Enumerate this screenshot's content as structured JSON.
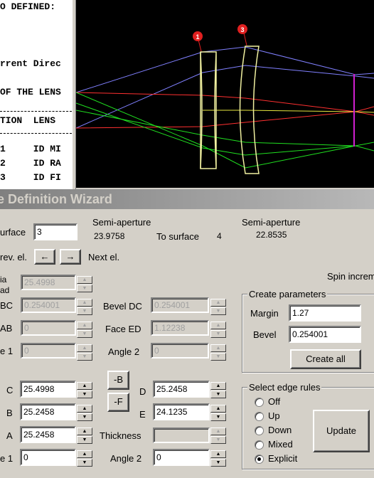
{
  "console": {
    "lines": [
      "O DEFINED:",
      "rrent Direc",
      "OF THE LENS",
      "TION  LENS",
      "1     ID MI",
      "2     ID RA",
      "3     ID FI"
    ]
  },
  "viewer": {
    "surface_markers": [
      "1",
      "3"
    ],
    "colors": {
      "blue": "#8080ff",
      "red": "#ff3030",
      "green": "#20e020",
      "yellow": "#e8e840",
      "lens": "#f0f0a0",
      "image": "#d020d0",
      "marker": "#e02020"
    }
  },
  "window": {
    "title": "e Definition Wizard"
  },
  "header": {
    "from_surface_label": "urface",
    "from_surface_value": "3",
    "semi_aperture_label_1": "Semi-aperture",
    "semi_aperture_value_1": "23.9758",
    "to_surface_label": "To surface",
    "to_surface_value": "4",
    "semi_aperture_label_2": "Semi-aperture",
    "semi_aperture_value_2": "22.8535"
  },
  "nav": {
    "prev_label": "rev. el.",
    "prev_arrow": "←",
    "next_arrow": "→",
    "next_label": "Next el."
  },
  "spin_increment_label": "Spin increm",
  "left_disabled": {
    "row1_label_a": "ia",
    "row1_label_b": "ad",
    "row1_value": "25.4998",
    "row2_label": "BC",
    "row2_value": "0.254001",
    "row3_label": "AB",
    "row3_value": "0",
    "row4_label": "e 1",
    "row4_value": "0"
  },
  "mid_disabled": {
    "bevel_dc_label": "Bevel DC",
    "bevel_dc_value": "0.254001",
    "face_ed_label": "Face ED",
    "face_ed_value": "1.12238",
    "angle2_label": "Angle 2",
    "angle2_value": "0"
  },
  "create_params": {
    "title": "Create parameters",
    "margin_label": "Margin",
    "margin_value": "1.27",
    "bevel_label": "Bevel",
    "bevel_value": "0.254001",
    "create_all_label": "Create all"
  },
  "edges": {
    "c_label": "C",
    "c_value": "25.4998",
    "b_label": "B",
    "b_value": "25.2458",
    "a_label": "A",
    "a_value": "25.2458",
    "angle1_label": "e 1",
    "angle1_value": "0",
    "minus_b_label": "-B",
    "minus_f_label": "-F",
    "d_label": "D",
    "d_value": "25.2458",
    "e_label": "E",
    "e_value": "24.1235",
    "thickness_label": "Thickness",
    "thickness_value": "",
    "angle2_label": "Angle 2",
    "angle2_value": "0"
  },
  "edge_rules": {
    "title": "Select edge rules",
    "options": [
      "Off",
      "Up",
      "Down",
      "Mixed",
      "Explicit"
    ],
    "selected": "Explicit",
    "update_label": "Update"
  }
}
